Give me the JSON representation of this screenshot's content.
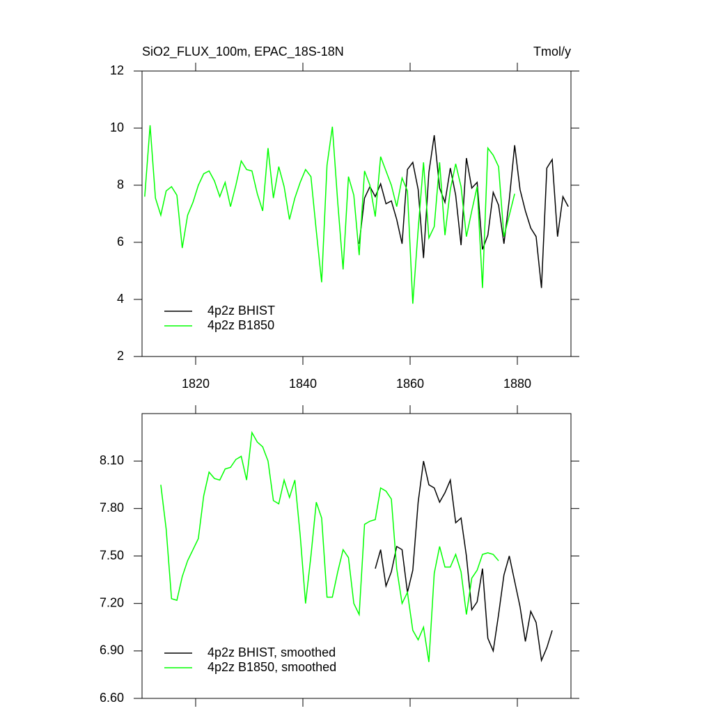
{
  "chart_data": [
    {
      "type": "line",
      "title": "SiO2_FLUX_100m, EPAC_18S-18N",
      "units": "Tmol/y",
      "xlim": [
        1810,
        1890
      ],
      "xticks": [
        1820,
        1840,
        1860,
        1880
      ],
      "ylim": [
        2,
        12
      ],
      "yticks": [
        2,
        4,
        6,
        8,
        10,
        12
      ],
      "legend": "lower left",
      "series": [
        {
          "name": "4p2z BHIST",
          "color": "#000000",
          "x": [
            1850.5,
            1851.5,
            1852.5,
            1853.5,
            1854.5,
            1855.5,
            1856.5,
            1857.5,
            1858.5,
            1859.5,
            1860.5,
            1861.5,
            1862.5,
            1863.5,
            1864.5,
            1865.5,
            1866.5,
            1867.5,
            1868.5,
            1869.5,
            1870.5,
            1871.5,
            1872.5,
            1873.5,
            1874.5,
            1875.5,
            1876.5,
            1877.5,
            1878.5,
            1879.5,
            1880.5,
            1881.5,
            1882.5,
            1883.5,
            1884.5,
            1885.5,
            1886.5,
            1887.5,
            1888.5,
            1889.5
          ],
          "values": [
            5.95,
            7.55,
            7.95,
            7.6,
            8.05,
            7.35,
            7.45,
            6.8,
            5.95,
            8.55,
            8.8,
            7.85,
            5.45,
            8.45,
            9.75,
            7.9,
            7.4,
            8.6,
            7.65,
            5.9,
            8.95,
            7.9,
            8.1,
            5.75,
            6.25,
            7.75,
            7.3,
            5.95,
            7.5,
            9.4,
            7.85,
            7.1,
            6.5,
            6.2,
            4.4,
            8.6,
            8.9,
            6.2,
            7.6,
            7.25
          ]
        },
        {
          "name": "4p2z B1850",
          "color": "#00ff00",
          "x": [
            1810.5,
            1811.5,
            1812.5,
            1813.5,
            1814.5,
            1815.5,
            1816.5,
            1817.5,
            1818.5,
            1819.5,
            1820.5,
            1821.5,
            1822.5,
            1823.5,
            1824.5,
            1825.5,
            1826.5,
            1827.5,
            1828.5,
            1829.5,
            1830.5,
            1831.5,
            1832.5,
            1833.5,
            1834.5,
            1835.5,
            1836.5,
            1837.5,
            1838.5,
            1839.5,
            1840.5,
            1841.5,
            1842.5,
            1843.5,
            1844.5,
            1845.5,
            1846.5,
            1847.5,
            1848.5,
            1849.5,
            1850.5,
            1851.5,
            1852.5,
            1853.5,
            1854.5,
            1855.5,
            1856.5,
            1857.5,
            1858.5,
            1859.5,
            1860.5,
            1861.5,
            1862.5,
            1863.5,
            1864.5,
            1865.5,
            1866.5,
            1867.5,
            1868.5,
            1869.5,
            1870.5,
            1871.5,
            1872.5,
            1873.5,
            1874.5,
            1875.5,
            1876.5,
            1877.5,
            1878.5,
            1879.5
          ],
          "values": [
            7.6,
            10.1,
            7.55,
            6.95,
            7.8,
            7.95,
            7.65,
            5.8,
            6.95,
            7.4,
            8.0,
            8.4,
            8.5,
            8.15,
            7.6,
            8.1,
            7.25,
            8.0,
            8.85,
            8.55,
            8.5,
            7.7,
            7.1,
            9.3,
            7.55,
            8.65,
            7.95,
            6.8,
            7.55,
            8.1,
            8.55,
            8.3,
            6.4,
            4.6,
            8.7,
            10.05,
            7.4,
            5.05,
            8.3,
            7.65,
            5.55,
            8.5,
            8.0,
            6.9,
            9.0,
            8.5,
            8.0,
            7.25,
            8.25,
            7.8,
            3.85,
            6.45,
            8.8,
            6.15,
            6.55,
            8.8,
            6.25,
            7.85,
            8.75,
            7.95,
            6.2,
            7.1,
            7.95,
            4.4,
            9.3,
            9.05,
            8.65,
            6.2,
            6.95,
            7.7
          ]
        }
      ]
    },
    {
      "type": "line",
      "xlim": [
        1810,
        1890
      ],
      "xticks": [
        1820,
        1840,
        1860,
        1880
      ],
      "ylim": [
        6.6,
        8.4
      ],
      "yticks": [
        {
          "value": 6.6,
          "label": "6.60"
        },
        {
          "value": 6.9,
          "label": "6.90"
        },
        {
          "value": 7.2,
          "label": "7.20"
        },
        {
          "value": 7.5,
          "label": "7.50"
        },
        {
          "value": 7.8,
          "label": "7.80"
        },
        {
          "value": 8.1,
          "label": "8.10"
        }
      ],
      "legend": "lower left",
      "series": [
        {
          "name": "4p2z BHIST, smoothed",
          "color": "#000000",
          "x": [
            1853.5,
            1854.5,
            1855.5,
            1856.5,
            1857.5,
            1858.5,
            1859.5,
            1860.5,
            1861.5,
            1862.5,
            1863.5,
            1864.5,
            1865.5,
            1866.5,
            1867.5,
            1868.5,
            1869.5,
            1870.5,
            1871.5,
            1872.5,
            1873.5,
            1874.5,
            1875.5,
            1876.5,
            1877.5,
            1878.5,
            1879.5,
            1880.5,
            1881.5,
            1882.5,
            1883.5,
            1884.5,
            1885.5,
            1886.5
          ],
          "values": [
            7.42,
            7.54,
            7.31,
            7.4,
            7.56,
            7.54,
            7.27,
            7.41,
            7.84,
            8.1,
            7.95,
            7.93,
            7.84,
            7.9,
            7.98,
            7.71,
            7.74,
            7.5,
            7.16,
            7.21,
            7.42,
            6.98,
            6.9,
            7.13,
            7.38,
            7.5,
            7.34,
            7.18,
            6.96,
            7.15,
            7.08,
            6.84,
            6.92,
            7.03
          ]
        },
        {
          "name": "4p2z B1850, smoothed",
          "color": "#00ff00",
          "x": [
            1813.5,
            1814.5,
            1815.5,
            1816.5,
            1817.5,
            1818.5,
            1819.5,
            1820.5,
            1821.5,
            1822.5,
            1823.5,
            1824.5,
            1825.5,
            1826.5,
            1827.5,
            1828.5,
            1829.5,
            1830.5,
            1831.5,
            1832.5,
            1833.5,
            1834.5,
            1835.5,
            1836.5,
            1837.5,
            1838.5,
            1839.5,
            1840.5,
            1841.5,
            1842.5,
            1843.5,
            1844.5,
            1845.5,
            1846.5,
            1847.5,
            1848.5,
            1849.5,
            1850.5,
            1851.5,
            1852.5,
            1853.5,
            1854.5,
            1855.5,
            1856.5,
            1857.5,
            1858.5,
            1859.5,
            1860.5,
            1861.5,
            1862.5,
            1863.5,
            1864.5,
            1865.5,
            1866.5,
            1867.5,
            1868.5,
            1869.5,
            1870.5,
            1871.5,
            1872.5,
            1873.5,
            1874.5,
            1875.5,
            1876.5
          ],
          "values": [
            7.95,
            7.67,
            7.23,
            7.22,
            7.37,
            7.47,
            7.54,
            7.61,
            7.88,
            8.03,
            7.99,
            7.98,
            8.05,
            8.06,
            8.11,
            8.13,
            7.98,
            8.28,
            8.22,
            8.19,
            8.1,
            7.85,
            7.83,
            7.98,
            7.87,
            7.98,
            7.63,
            7.2,
            7.5,
            7.84,
            7.74,
            7.24,
            7.24,
            7.4,
            7.54,
            7.49,
            7.2,
            7.13,
            7.7,
            7.72,
            7.73,
            7.93,
            7.91,
            7.86,
            7.42,
            7.2,
            7.27,
            7.03,
            6.97,
            7.05,
            6.83,
            7.39,
            7.56,
            7.43,
            7.43,
            7.51,
            7.4,
            7.13,
            7.36,
            7.41,
            7.51,
            7.52,
            7.51,
            7.47
          ]
        }
      ]
    }
  ]
}
